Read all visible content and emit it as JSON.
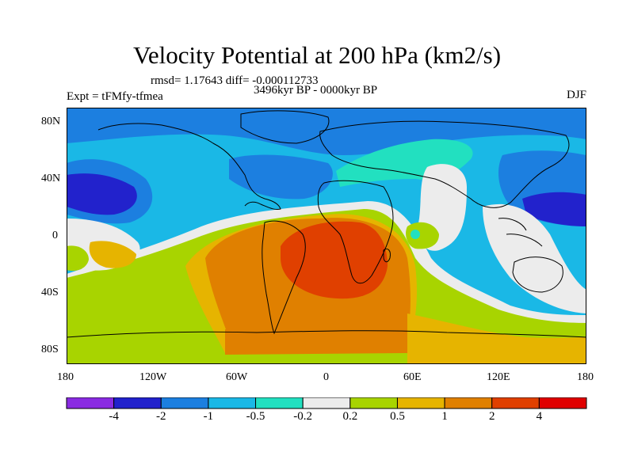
{
  "title": "Velocity Potential at 200 hPa (km2/s)",
  "stats": "rmsd= 1.17643 diff= -0.000112733",
  "expt": "Expt = tFMfy-tfmea",
  "period": "3496kyr BP - 0000kyr BP",
  "season": "DJF",
  "axes": {
    "lat_ticks": [
      "80N",
      "40N",
      "0",
      "40S",
      "80S"
    ],
    "lon_ticks": [
      "180",
      "120W",
      "60W",
      "0",
      "60E",
      "120E",
      "180"
    ]
  },
  "colorbar": {
    "labels": [
      "-4",
      "-2",
      "-1",
      "-0.5",
      "-0.2",
      "0.2",
      "0.5",
      "1",
      "2",
      "4"
    ],
    "colors": [
      "#8a2be2",
      "#2222cc",
      "#1c7fe0",
      "#1ab8e6",
      "#22e0c0",
      "#ececec",
      "#a8d400",
      "#e6b400",
      "#e08000",
      "#e04000",
      "#e00000"
    ]
  }
}
